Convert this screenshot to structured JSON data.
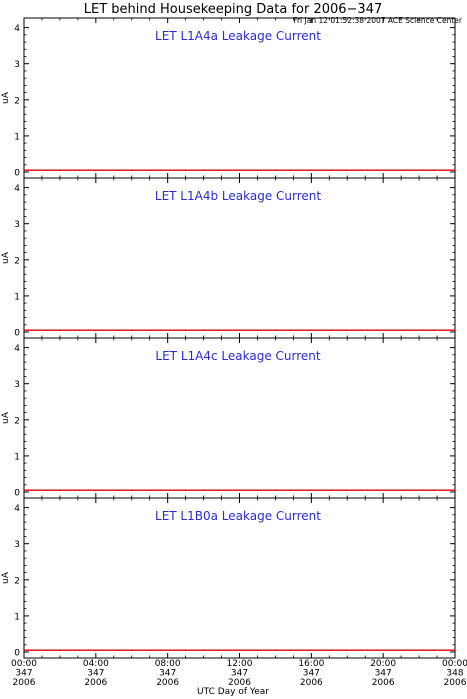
{
  "title": "LET behind Housekeeping Data for 2006−347",
  "subtitle": "Fri Jan 12 01:52:38 2007 ACE Science Center",
  "xlabel": "UTC Day of Year",
  "colors": {
    "panel_title": "#2b2bd6",
    "series": "#e00000",
    "axes": "#000000"
  },
  "x_ticks": [
    {
      "hour": 0,
      "lines": [
        "00:00",
        "347",
        "2006"
      ]
    },
    {
      "hour": 4,
      "lines": [
        "04:00",
        "347",
        "2006"
      ]
    },
    {
      "hour": 8,
      "lines": [
        "08:00",
        "347",
        "2006"
      ]
    },
    {
      "hour": 12,
      "lines": [
        "12:00",
        "347",
        "2006"
      ]
    },
    {
      "hour": 16,
      "lines": [
        "16:00",
        "347",
        "2006"
      ]
    },
    {
      "hour": 20,
      "lines": [
        "20:00",
        "347",
        "2006"
      ]
    },
    {
      "hour": 24,
      "lines": [
        "00:00",
        "348",
        "2006"
      ]
    }
  ],
  "chart_data": [
    {
      "type": "line",
      "title": "LET L1A4a Leakage Current",
      "ylabel": "uA",
      "ylim": [
        0,
        4.1
      ],
      "y_ticks": [
        0,
        1,
        2,
        3,
        4
      ],
      "xlim": [
        0,
        24
      ],
      "series": [
        {
          "x": [
            0,
            24
          ],
          "values": [
            0.05,
            0.05
          ]
        }
      ]
    },
    {
      "type": "line",
      "title": "LET L1A4b Leakage Current",
      "ylabel": "uA",
      "ylim": [
        0,
        4.1
      ],
      "y_ticks": [
        0,
        1,
        2,
        3,
        4
      ],
      "xlim": [
        0,
        24
      ],
      "series": [
        {
          "x": [
            0,
            24
          ],
          "values": [
            0.05,
            0.05
          ]
        }
      ]
    },
    {
      "type": "line",
      "title": "LET L1A4c Leakage Current",
      "ylabel": "uA",
      "ylim": [
        0,
        4.1
      ],
      "y_ticks": [
        0,
        1,
        2,
        3,
        4
      ],
      "xlim": [
        0,
        24
      ],
      "series": [
        {
          "x": [
            0,
            24
          ],
          "values": [
            0.05,
            0.05
          ]
        }
      ]
    },
    {
      "type": "line",
      "title": "LET L1B0a Leakage Current",
      "ylabel": "uA",
      "ylim": [
        0,
        4.1
      ],
      "y_ticks": [
        0,
        1,
        2,
        3,
        4
      ],
      "xlim": [
        0,
        24
      ],
      "series": [
        {
          "x": [
            0,
            24
          ],
          "values": [
            0.05,
            0.05
          ]
        }
      ]
    }
  ]
}
